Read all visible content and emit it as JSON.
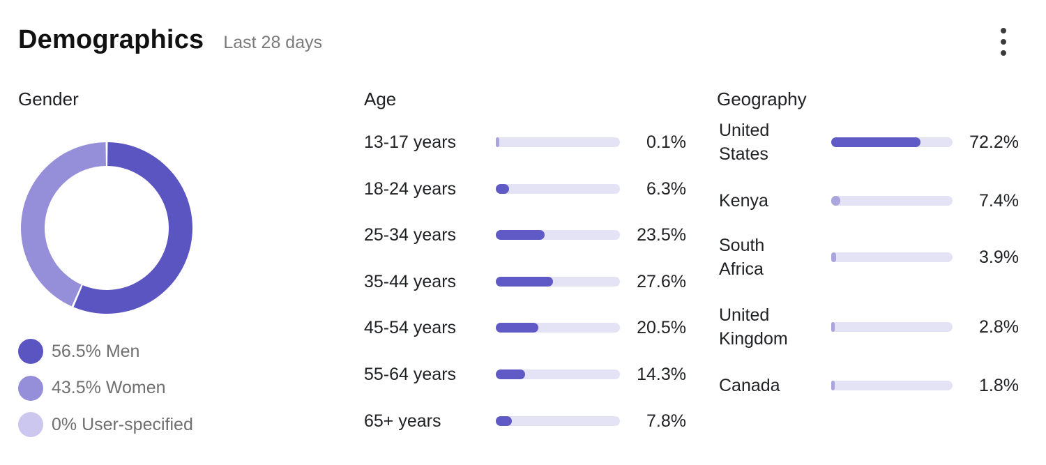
{
  "header": {
    "title": "Demographics",
    "subtitle": "Last 28 days",
    "menu_icon": "more-vert-icon"
  },
  "colors": {
    "men": "#5b55c2",
    "women": "#958ed8",
    "user_specified": "#cbc7ee",
    "bar_fill": "#605ac6",
    "bar_track": "#e4e3f5"
  },
  "gender": {
    "label": "Gender",
    "legend": [
      {
        "text": "56.5% Men",
        "value": 56.5,
        "color": "#5b55c2"
      },
      {
        "text": "43.5% Women",
        "value": 43.5,
        "color": "#958ed8"
      },
      {
        "text": "0% User-specified",
        "value": 0,
        "color": "#cbc7ee"
      }
    ]
  },
  "age": {
    "label": "Age",
    "rows": [
      {
        "label": "13-17 years",
        "value_text": "0.1%",
        "value": 0.1
      },
      {
        "label": "18-24 years",
        "value_text": "6.3%",
        "value": 6.3
      },
      {
        "label": "25-34 years",
        "value_text": "23.5%",
        "value": 23.5
      },
      {
        "label": "35-44 years",
        "value_text": "27.6%",
        "value": 27.6
      },
      {
        "label": "45-54 years",
        "value_text": "20.5%",
        "value": 20.5
      },
      {
        "label": "55-64 years",
        "value_text": "14.3%",
        "value": 14.3
      },
      {
        "label": "65+ years",
        "value_text": "7.8%",
        "value": 7.8
      }
    ]
  },
  "geography": {
    "label": "Geography",
    "rows": [
      {
        "label_lines": [
          "United",
          "States"
        ],
        "value_text": "72.2%",
        "value": 72.2
      },
      {
        "label_lines": [
          "Kenya"
        ],
        "value_text": "7.4%",
        "value": 7.4
      },
      {
        "label_lines": [
          "South",
          "Africa"
        ],
        "value_text": "3.9%",
        "value": 3.9
      },
      {
        "label_lines": [
          "United",
          "Kingdom"
        ],
        "value_text": "2.8%",
        "value": 2.8
      },
      {
        "label_lines": [
          "Canada"
        ],
        "value_text": "1.8%",
        "value": 1.8
      }
    ]
  }
}
